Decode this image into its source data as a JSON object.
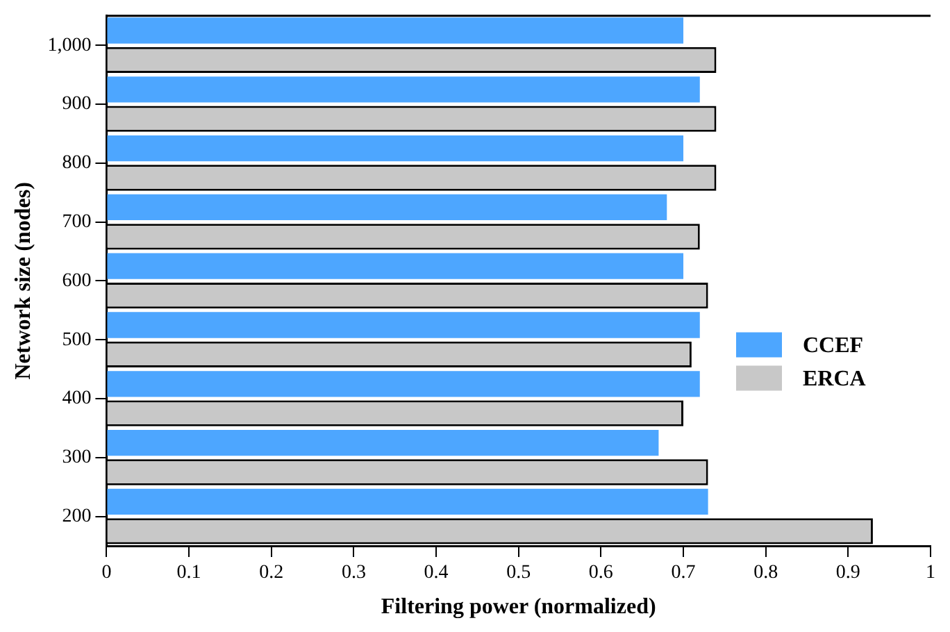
{
  "chart_data": {
    "type": "bar",
    "orientation": "horizontal",
    "xlabel": "Filtering power (normalized)",
    "ylabel": "Network size (nodes)",
    "categories": [
      "1,000",
      "900",
      "800",
      "700",
      "600",
      "500",
      "400",
      "300",
      "200"
    ],
    "series": [
      {
        "name": "CCEF",
        "color": "#4da6ff",
        "values": [
          0.7,
          0.72,
          0.7,
          0.68,
          0.7,
          0.72,
          0.72,
          0.67,
          0.73
        ]
      },
      {
        "name": "ERCA",
        "color": "#c8c8c8",
        "values": [
          0.74,
          0.74,
          0.74,
          0.72,
          0.73,
          0.71,
          0.7,
          0.73,
          0.93
        ]
      }
    ],
    "xlim": [
      0,
      1
    ],
    "xticks": [
      0,
      0.1,
      0.2,
      0.3,
      0.4,
      0.5,
      0.6,
      0.7,
      0.8,
      0.9,
      1
    ],
    "grid": false,
    "legend": "right"
  }
}
